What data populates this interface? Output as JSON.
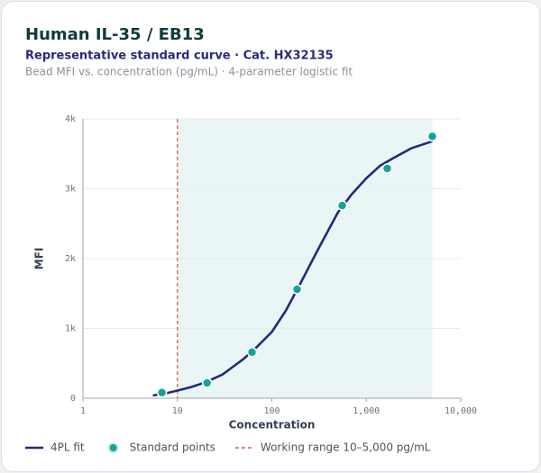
{
  "chart_data": {
    "type": "line",
    "title": "Human IL-35 / EB13",
    "subtitle": "Representative standard curve · Cat. HX32135",
    "note": "Bead MFI vs. concentration (pg/mL) · 4-parameter logistic fit",
    "x_label": "Concentration",
    "y_label": "MFI",
    "xscale": "log",
    "xlim": [
      1,
      10000
    ],
    "xticks": [
      1,
      10,
      100,
      {
        "value": 1000,
        "label": "1,000"
      },
      {
        "value": 10000,
        "label": "10,000"
      }
    ],
    "ylim": [
      0,
      4000
    ],
    "yticks": [
      0,
      {
        "value": 1000,
        "label": "1k"
      },
      {
        "value": 2000,
        "label": "2k"
      },
      {
        "value": 3000,
        "label": "3k"
      },
      {
        "value": 4000,
        "label": "4k"
      }
    ],
    "grid": true,
    "legend": "bottom",
    "series": [
      {
        "name": "4PL fit",
        "type": "line",
        "color": "#232a7c",
        "x": [
          5.5,
          7,
          10,
          14,
          20,
          30,
          50,
          70,
          100,
          140,
          200,
          300,
          500,
          700,
          1000,
          1400,
          2000,
          3000,
          5000
        ],
        "values": [
          40,
          60,
          110,
          160,
          230,
          340,
          560,
          740,
          950,
          1250,
          1640,
          2100,
          2660,
          2920,
          3150,
          3330,
          3450,
          3580,
          3680
        ]
      },
      {
        "name": "Standard points",
        "type": "scatter",
        "color": "#14a39a",
        "x": [
          6.86,
          20.6,
          61.7,
          185,
          556,
          1667,
          5000
        ],
        "values": [
          80,
          220,
          660,
          1560,
          2760,
          3290,
          3750
        ]
      }
    ],
    "working_range": {
      "name": "Working range 10–5,000 pg/mL",
      "color": "#d9534f",
      "fill": "#eaf6f6",
      "x": [
        10,
        5000
      ]
    }
  }
}
